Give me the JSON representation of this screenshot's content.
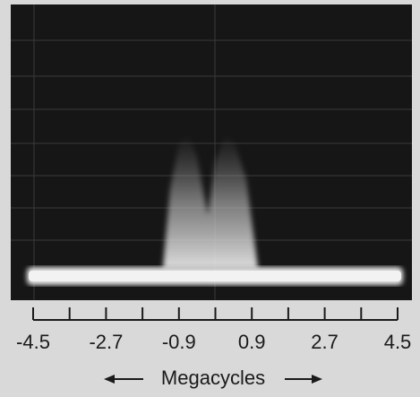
{
  "chart_data": {
    "type": "spectrum",
    "xlabel": "Megacycles",
    "xlim": [
      -4.5,
      4.5
    ],
    "xticks": [
      -4.5,
      -2.7,
      -0.9,
      0.9,
      2.7,
      4.5
    ],
    "minor_xticks": [
      -3.6,
      -1.8,
      0,
      1.8,
      3.6
    ]
  }
}
